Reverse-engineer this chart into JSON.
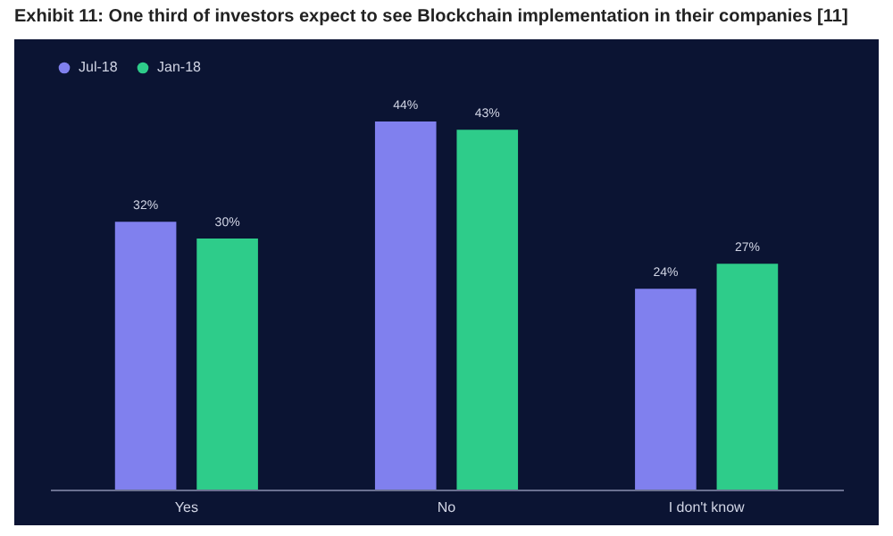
{
  "chart_data": {
    "type": "bar",
    "title": "Exhibit 11: One third of investors expect to see Blockchain implementation in their companies [11]",
    "categories": [
      "Yes",
      "No",
      "I don't know"
    ],
    "series": [
      {
        "name": "Jul-18",
        "color": "#8080ee",
        "values": [
          32,
          44,
          24
        ],
        "value_labels": [
          "32%",
          "44%",
          "24%"
        ]
      },
      {
        "name": "Jan-18",
        "color": "#2ecc8a",
        "values": [
          30,
          43,
          27
        ],
        "value_labels": [
          "30%",
          "43%",
          "27%"
        ]
      }
    ],
    "legend": "top"
  }
}
